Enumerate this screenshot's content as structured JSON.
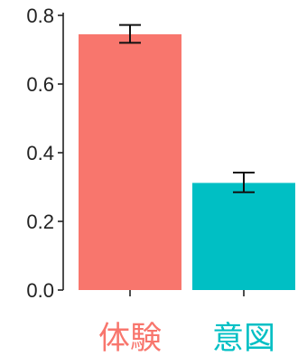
{
  "chart_data": {
    "type": "bar",
    "categories": [
      "体験",
      "意図"
    ],
    "values": [
      0.745,
      0.312
    ],
    "error_bars": [
      {
        "low": 0.72,
        "high": 0.772
      },
      {
        "low": 0.285,
        "high": 0.342
      }
    ],
    "colors": [
      "#F8766D",
      "#00BFC4"
    ],
    "ylim": [
      0,
      0.8
    ],
    "y_ticks": [
      "0.0",
      "0.2",
      "0.4",
      "0.6",
      "0.8"
    ],
    "y_tick_values": [
      0,
      0.2,
      0.4,
      0.6,
      0.8
    ],
    "title": "",
    "xlabel": "",
    "ylabel": "",
    "grid": false,
    "legend": "none"
  }
}
